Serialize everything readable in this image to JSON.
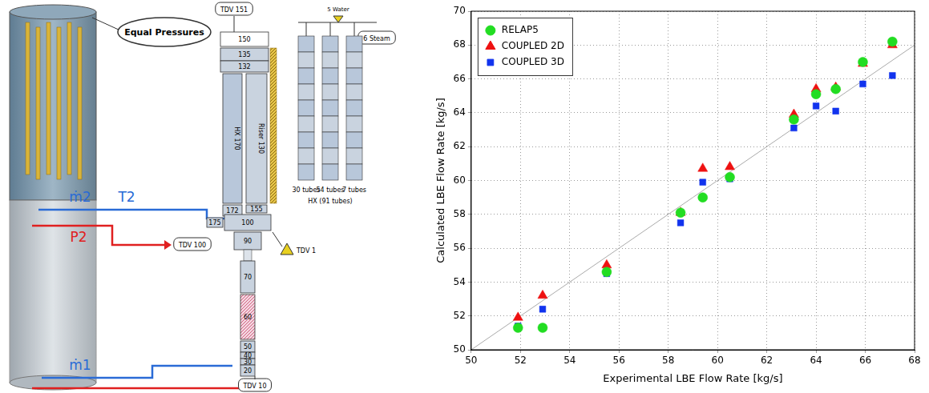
{
  "chart_data": {
    "type": "scatter",
    "x_label": "Experimental LBE Flow Rate [kg/s]",
    "y_label": "Calculated LBE Flow Rate [kg/s]",
    "x": [
      51.9,
      52.9,
      55.5,
      58.5,
      59.4,
      60.5,
      63.1,
      64.0,
      64.8,
      65.9,
      67.1
    ],
    "series": [
      {
        "name": "RELAP5",
        "color": "#22dd22",
        "marker": "circle",
        "values": [
          51.3,
          51.3,
          54.6,
          58.1,
          59.0,
          60.2,
          63.6,
          65.1,
          65.4,
          67.0,
          68.2
        ]
      },
      {
        "name": "COUPLED 2D",
        "color": "#ee1111",
        "marker": "triangle",
        "values": [
          51.9,
          53.2,
          55.0,
          58.1,
          60.7,
          60.8,
          63.9,
          65.4,
          65.5,
          66.9,
          68.0
        ]
      },
      {
        "name": "COUPLED 3D",
        "color": "#1133ee",
        "marker": "square",
        "values": [
          51.4,
          52.4,
          54.5,
          57.5,
          59.9,
          60.1,
          63.1,
          64.4,
          64.1,
          65.7,
          66.2
        ]
      }
    ],
    "reference_line": {
      "x": [
        50,
        68
      ],
      "values": [
        50,
        68
      ],
      "color": "#aaaaaa"
    },
    "xlim": [
      50,
      68
    ],
    "xticks": [
      50,
      52,
      54,
      56,
      58,
      60,
      62,
      64,
      66,
      68
    ],
    "ylim": [
      50,
      70
    ],
    "yticks": [
      50,
      52,
      54,
      56,
      58,
      60,
      62,
      64,
      66,
      68,
      70
    ],
    "grid": true,
    "legend": "upper left"
  },
  "diagram": {
    "callout": "Equal Pressures",
    "flows": {
      "m2": "ṁ2",
      "t2": "T2",
      "p2": "P2",
      "m1": "ṁ1"
    },
    "boundaries": {
      "top": "TDV 151",
      "pressure": "TDV 100",
      "side": "TDV 1",
      "bottom": "TDV 10"
    },
    "nodes": {
      "n150": "150",
      "n135": "135",
      "n132": "132",
      "hx": "HX 170",
      "riser": "Riser 130",
      "n172": "172",
      "n155": "155",
      "n175": "175",
      "n100": "100",
      "n90": "90",
      "n70": "70",
      "n60": "60",
      "n50": "50",
      "n40": "40",
      "n30": "30",
      "n20": "20"
    },
    "hx_detail": {
      "title": "HX (91 tubes)",
      "water": "5 Water",
      "steam": "6 Steam",
      "groups": [
        "30 tubes",
        "54 tubes",
        "7 tubes"
      ]
    }
  }
}
